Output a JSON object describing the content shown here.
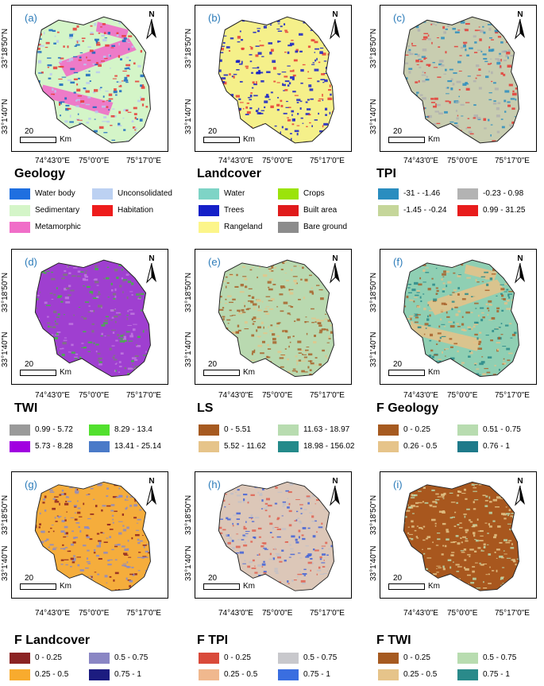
{
  "coords": {
    "lat_top": "33°18'50\"N",
    "lat_bottom": "33°1'40\"N",
    "lon_left": "74°43'0\"E",
    "lon_mid": "75°0'0\"E",
    "lon_right": "75°17'0\"E"
  },
  "north_label": "N",
  "scale_number": "20",
  "scale_unit": "Km",
  "panels": [
    {
      "label": "(a)",
      "title": "Geology",
      "base": "#d4f5c8",
      "dots": [
        "#e53935",
        "#b8c8f0",
        "#1565c0"
      ],
      "bands": "#f06ec8",
      "legend": [
        {
          "label": "Water body",
          "color": "#1f6fe0"
        },
        {
          "label": "Unconsolidated",
          "color": "#bcd1f2"
        },
        {
          "label": "Sedimentary",
          "color": "#d4f5c8"
        },
        {
          "label": "Habitation",
          "color": "#ee1c1c"
        },
        {
          "label": "Metamorphic",
          "color": "#f06ec8"
        }
      ]
    },
    {
      "label": "(b)",
      "title": "Landcover",
      "base": "#f5f08a",
      "dots": [
        "#1520c8",
        "#1520c8",
        "#e53935"
      ],
      "bands": "",
      "legend": [
        {
          "label": "Water",
          "color": "#7ed4c6"
        },
        {
          "label": "Crops",
          "color": "#9be30a"
        },
        {
          "label": "Trees",
          "color": "#1520c8"
        },
        {
          "label": "Built area",
          "color": "#e01b1b"
        },
        {
          "label": "Rangeland",
          "color": "#fcf58a"
        },
        {
          "label": "Bare ground",
          "color": "#8c8c8c"
        }
      ]
    },
    {
      "label": "(c)",
      "title": "TPI",
      "base": "#c8cdb0",
      "dots": [
        "#e53935",
        "#2a8dbf",
        "#b0b0b0"
      ],
      "bands": "",
      "legend": [
        {
          "label": "-31 - -1.46",
          "color": "#2a8dbf"
        },
        {
          "label": "-0.23 - 0.98",
          "color": "#b3b3b3"
        },
        {
          "label": "-1.45 - -0.24",
          "color": "#c5d69a"
        },
        {
          "label": "0.99 - 31.25",
          "color": "#e81c1c"
        }
      ]
    },
    {
      "label": "(d)",
      "title": "TWI",
      "base": "#9f3fd0",
      "dots": [
        "#7a7a7a",
        "#c07ae0",
        "#3fb93f"
      ],
      "bands": "",
      "legend": [
        {
          "label": "0.99 - 5.72",
          "color": "#9a9a9a"
        },
        {
          "label": "8.29 - 13.4",
          "color": "#52e02e"
        },
        {
          "label": "5.73 - 8.28",
          "color": "#a100e0"
        },
        {
          "label": "13.41 - 25.14",
          "color": "#4a7ac8"
        }
      ]
    },
    {
      "label": "(e)",
      "title": "LS",
      "base": "#b9d9b0",
      "dots": [
        "#a8612a",
        "#e3c58a",
        "#a8612a"
      ],
      "bands": "",
      "legend": [
        {
          "label": "0 - 5.51",
          "color": "#a65a20"
        },
        {
          "label": "11.63 - 18.97",
          "color": "#b8dcb0"
        },
        {
          "label": "5.52 - 11.62",
          "color": "#e6c48a"
        },
        {
          "label": "18.98 - 156.02",
          "color": "#248a8a"
        }
      ]
    },
    {
      "label": "(f)",
      "title": "F Geology",
      "base": "#8fcfb3",
      "dots": [
        "#e2c28a",
        "#2a8a8a",
        "#a8612a"
      ],
      "bands": "#e2c28a",
      "legend": [
        {
          "label": "0 - 0.25",
          "color": "#a65a20"
        },
        {
          "label": "0.51 - 0.75",
          "color": "#b8dcb0"
        },
        {
          "label": "0.26 - 0.5",
          "color": "#e6c48a"
        },
        {
          "label": "0.76 - 1",
          "color": "#1e7a8a"
        }
      ]
    },
    {
      "label": "(g)",
      "title": "F Landcover",
      "base": "#f5ad3c",
      "dots": [
        "#8a8ac8",
        "#8a8ac8",
        "#8b2020"
      ],
      "bands": "",
      "legend": [
        {
          "label": "0 - 0.25",
          "color": "#8b2323"
        },
        {
          "label": "0.5 - 0.75",
          "color": "#8a86c4"
        },
        {
          "label": "0.25 - 0.5",
          "color": "#f8ab2e"
        },
        {
          "label": "0.75 - 1",
          "color": "#1c1c80"
        }
      ]
    },
    {
      "label": "(h)",
      "title": "F TPI",
      "base": "#dcc7b8",
      "dots": [
        "#4060d8",
        "#e06050",
        "#c0c0c8"
      ],
      "bands": "",
      "legend": [
        {
          "label": "0 - 0.25",
          "color": "#d94a3a"
        },
        {
          "label": "0.5 - 0.75",
          "color": "#c8c8cc"
        },
        {
          "label": "0.25 - 0.5",
          "color": "#f0b88e"
        },
        {
          "label": "0.75 - 1",
          "color": "#3a6ee0"
        }
      ]
    },
    {
      "label": "(i)",
      "title": "F TWI",
      "base": "#a8571e",
      "dots": [
        "#e3c58a",
        "#b8dcb0",
        "#e3c58a"
      ],
      "bands": "",
      "legend": [
        {
          "label": "0 - 0.25",
          "color": "#a65a20"
        },
        {
          "label": "0.5 - 0.75",
          "color": "#b8dcb0"
        },
        {
          "label": "0.25 - 0.5",
          "color": "#e6c48a"
        },
        {
          "label": "0.75 - 1",
          "color": "#2a8a8a"
        }
      ]
    }
  ]
}
